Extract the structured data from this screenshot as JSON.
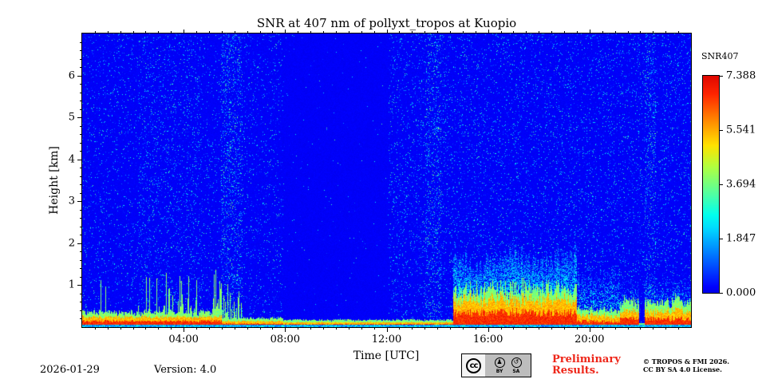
{
  "chart_data": {
    "type": "heatmap",
    "title": "SNR at 407 nm of pollyxt_tropos at Kuopio",
    "xlabel": "Time [UTC]",
    "ylabel": "Height [km]",
    "x_axis": {
      "range_hours": [
        0,
        24
      ],
      "major_ticks": [
        {
          "hour": 4,
          "label": "04:00"
        },
        {
          "hour": 8,
          "label": "08:00"
        },
        {
          "hour": 12,
          "label": "12:00"
        },
        {
          "hour": 16,
          "label": "16:00"
        },
        {
          "hour": 20,
          "label": "20:00"
        }
      ],
      "minor_step_hours": 0.5
    },
    "y_axis": {
      "range_km": [
        0,
        7
      ],
      "major_ticks": [
        1,
        2,
        3,
        4,
        5,
        6
      ],
      "minor_step_km": 0.2
    },
    "colorbar": {
      "label": "SNR407",
      "vmin": 0.0,
      "vmax": 7.388,
      "tick_labels": [
        "7.388",
        "5.541",
        "3.694",
        "1.847",
        "0.000"
      ],
      "colormap": "jet"
    },
    "regions": {
      "background_snr_max": 0.4,
      "quiet_interval_utc": [
        7.9,
        12.07
      ],
      "dense_speckle_columns_utc": [
        [
          5.45,
          6.3
        ],
        [
          13.5,
          14.15
        ],
        [
          22.15,
          22.6
        ]
      ],
      "morning_plume_intervals_utc": [
        [
          0.7,
          1.15
        ],
        [
          2.2,
          4.7
        ],
        [
          5.1,
          5.5
        ]
      ],
      "boundary_layer": {
        "strong_utc": [
          14.6,
          19.5
        ],
        "weak_utc": [
          19.5,
          21.2
        ],
        "evening_utc": [
          21.2,
          24.0
        ],
        "top_km_strong": 1.85,
        "top_km_evening": 1.1
      },
      "surface_layer_gap_utc": [
        21.95,
        22.15
      ],
      "surface_layer_top_km": 0.3,
      "surface_layer_snr_max": 7.388
    }
  },
  "footer": {
    "date": "2026-01-29",
    "version_label": "Version: 4.0",
    "preliminary_line1": "Preliminary",
    "preliminary_line2": "Results.",
    "preliminary_color": "#ee2619",
    "copyright_line1": "© TROPOS & FMI 2026.",
    "copyright_line2": "CC BY SA 4.0 License."
  },
  "cc_badge": {
    "cc_label": "cc",
    "by_label": "BY",
    "sa_label": "SA",
    "by_glyph": "♟",
    "sa_glyph": "↺"
  }
}
